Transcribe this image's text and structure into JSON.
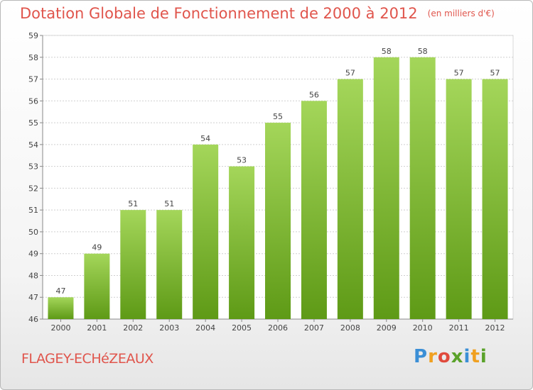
{
  "header": {
    "title": "Dotation Globale de Fonctionnement de 2000 à 2012",
    "unit": "(en milliers d'€)"
  },
  "footer": {
    "commune": "FLAGEY-ECHéZEAUX",
    "logo_text": "Proxiti"
  },
  "colors": {
    "title": "#e0554c",
    "bar_top": "#a4d65a",
    "bar_bottom": "#5e9a16",
    "grid": "#cfcfcf"
  },
  "chart_data": {
    "type": "bar",
    "categories": [
      "2000",
      "2001",
      "2002",
      "2003",
      "2004",
      "2005",
      "2006",
      "2007",
      "2008",
      "2009",
      "2010",
      "2011",
      "2012"
    ],
    "values": [
      47,
      49,
      51,
      51,
      54,
      53,
      55,
      56,
      57,
      58,
      58,
      57,
      57
    ],
    "data_labels": [
      "47",
      "49",
      "51",
      "51",
      "54",
      "53",
      "55",
      "56",
      "57",
      "58",
      "58",
      "57",
      "57"
    ],
    "ylim": [
      46,
      59
    ],
    "yticks": [
      46,
      47,
      48,
      49,
      50,
      51,
      52,
      53,
      54,
      55,
      56,
      57,
      58,
      59
    ],
    "title": "Dotation Globale de Fonctionnement de 2000 à 2012",
    "xlabel": "",
    "ylabel": "",
    "grid": true
  }
}
